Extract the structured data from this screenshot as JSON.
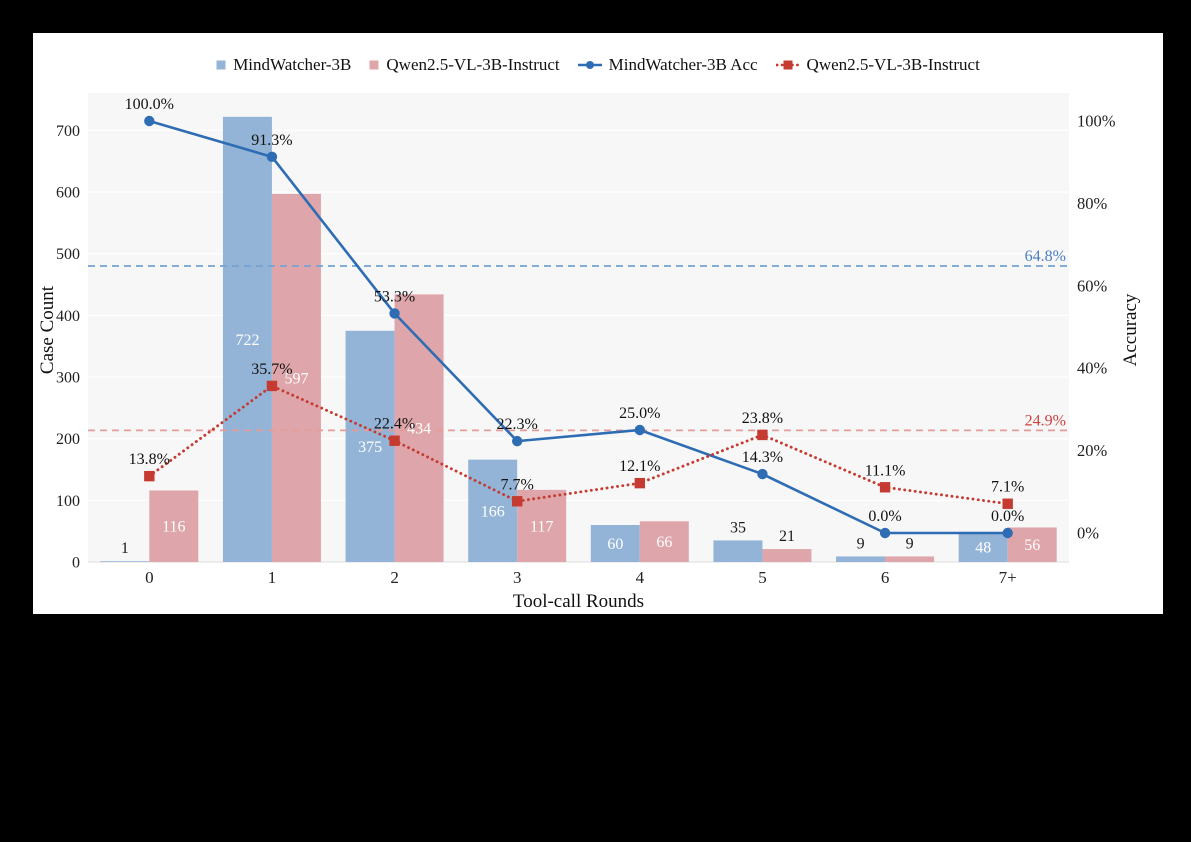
{
  "page": {
    "background": "#000000",
    "card_background": "#ffffff"
  },
  "legend": {
    "items": [
      {
        "label": "MindWatcher-3B",
        "marker": "bar-swatch",
        "color": "#94b4d7"
      },
      {
        "label": "Qwen2.5-VL-3B-Instruct",
        "marker": "bar-swatch",
        "color": "#dea6aa"
      },
      {
        "label": "MindWatcher-3B Acc",
        "marker": "line-circle",
        "color": "#2e6db4"
      },
      {
        "label": "Qwen2.5-VL-3B-Instruct",
        "marker": "dotted-line-square",
        "color": "#c53b32"
      }
    ]
  },
  "chart_data": {
    "type": "bar+line combo",
    "xlabel": "Tool-call Rounds",
    "ylabel_left": "Case Count",
    "ylabel_right": "Accuracy",
    "categories": [
      "0",
      "1",
      "2",
      "3",
      "4",
      "5",
      "6",
      "7+"
    ],
    "bar_series": [
      {
        "name": "MindWatcher-3B",
        "color": "#94b4d7",
        "values": [
          1,
          722,
          375,
          166,
          60,
          35,
          9,
          48
        ]
      },
      {
        "name": "Qwen2.5-VL-3B-Instruct",
        "color": "#dea6aa",
        "values": [
          116,
          597,
          434,
          117,
          66,
          21,
          9,
          56
        ]
      }
    ],
    "line_series": [
      {
        "name": "MindWatcher-3B Acc",
        "color": "#2e6db4",
        "style": "solid",
        "marker": "circle",
        "values_pct": [
          100.0,
          91.3,
          53.3,
          22.3,
          25.0,
          14.3,
          0.0,
          0.0
        ],
        "point_labels": [
          "100.0%",
          "91.3%",
          "53.3%",
          "22.3%",
          "25.0%",
          "14.3%",
          "0.0%",
          "0.0%"
        ]
      },
      {
        "name": "Qwen2.5-VL-3B-Instruct Acc",
        "color": "#c53b32",
        "style": "dotted",
        "marker": "square",
        "values_pct": [
          13.8,
          35.7,
          22.4,
          7.7,
          12.1,
          23.8,
          11.1,
          7.1
        ],
        "point_labels": [
          "13.8%",
          "35.7%",
          "22.4%",
          "7.7%",
          "12.1%",
          "23.8%",
          "11.1%",
          "7.1%"
        ]
      }
    ],
    "reference_lines": [
      {
        "label": "64.8%",
        "value_pct": 64.8,
        "line_color": "#74a3d4",
        "text_color": "#4a7ebf"
      },
      {
        "label": "24.9%",
        "value_pct": 24.9,
        "line_color": "#e39c98",
        "text_color": "#c9423c"
      }
    ],
    "y_axis_left": {
      "ticks": [
        0,
        100,
        200,
        300,
        400,
        500,
        600,
        700
      ],
      "range": [
        0,
        760
      ]
    },
    "y_axis_right": {
      "tick_labels": [
        "0%",
        "20%",
        "40%",
        "60%",
        "80%",
        "100%"
      ],
      "tick_values_pct": [
        0,
        20,
        40,
        60,
        80,
        100
      ],
      "range_pct": [
        0,
        100
      ]
    },
    "style": {
      "panel_color": "#f7f7f7",
      "grid_color": "#ffffff",
      "baseline_color": "#dcdcdc",
      "bar_label_inside_color": "#ffffff",
      "bar_label_outside_color": "#1a1a1a",
      "annotation_color": "#111111",
      "tick_color": "#222222",
      "bar_label_inside_min_value": 40
    }
  }
}
